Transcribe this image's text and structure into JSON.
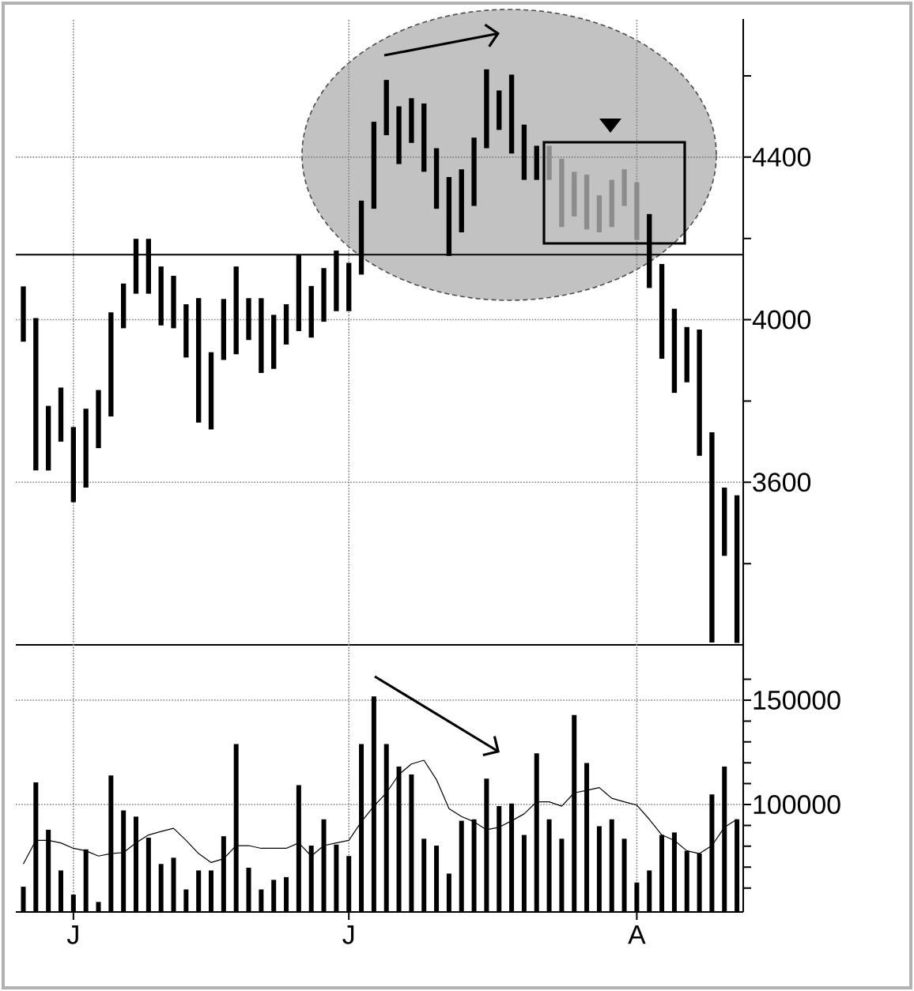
{
  "chart_data": [
    {
      "type": "bar",
      "grid": true,
      "tick_labels": "y",
      "categories": [
        null,
        null,
        null,
        null,
        null,
        null,
        null,
        null,
        null,
        null,
        null,
        null,
        null,
        null,
        null,
        null,
        null,
        null,
        null,
        null,
        null,
        null,
        null,
        null,
        null,
        null,
        null,
        null,
        null,
        null,
        null,
        null,
        null,
        null,
        null,
        null,
        null,
        null,
        null,
        null,
        null,
        null,
        null,
        null,
        null,
        null,
        null,
        null,
        null,
        null,
        null,
        null,
        null,
        null,
        null,
        null,
        null,
        null
      ],
      "base": [
        3946,
        3629,
        3629,
        3700,
        3551,
        3587,
        3684,
        3762,
        3979,
        4064,
        4064,
        3986,
        3979,
        3907,
        3747,
        3730,
        3901,
        3915,
        3950,
        3869,
        3879,
        3939,
        3972,
        3956,
        3995,
        4021,
        4021,
        4111,
        4273,
        4454,
        4383,
        4435,
        4364,
        4273,
        4157,
        4215,
        4280,
        4422,
        4467,
        4409,
        4344,
        4344,
        4344,
        4228,
        4254,
        4222,
        4215,
        4228,
        4280,
        4196,
        4078,
        3904,
        3820,
        3846,
        3665,
        3206,
        3419,
        3205
      ],
      "values": [
        136,
        375,
        159,
        133,
        185,
        194,
        143,
        256,
        110,
        135,
        135,
        145,
        129,
        131,
        306,
        190,
        150,
        216,
        103,
        184,
        133,
        99,
        187,
        127,
        132,
        149,
        119,
        182,
        214,
        136,
        142,
        110,
        168,
        149,
        194,
        155,
        168,
        194,
        97,
        194,
        136,
        84,
        84,
        168,
        110,
        135,
        91,
        116,
        90,
        142,
        182,
        233,
        207,
        136,
        311,
        517,
        168,
        363
      ],
      "colors": [
        "#000000",
        "#000000",
        "#000000",
        "#000000",
        "#000000",
        "#000000",
        "#000000",
        "#000000",
        "#000000",
        "#000000",
        "#000000",
        "#000000",
        "#000000",
        "#000000",
        "#000000",
        "#000000",
        "#000000",
        "#000000",
        "#000000",
        "#000000",
        "#000000",
        "#000000",
        "#000000",
        "#000000",
        "#000000",
        "#000000",
        "#000000",
        "#000000",
        "#000000",
        "#000000",
        "#000000",
        "#000000",
        "#000000",
        "#000000",
        "#000000",
        "#000000",
        "#000000",
        "#000000",
        "#000000",
        "#000000",
        "#000000",
        "#000000",
        "#8c8c8c",
        "#8c8c8c",
        "#8c8c8c",
        "#8c8c8c",
        "#8c8c8c",
        "#8c8c8c",
        "#8c8c8c",
        "#8c8c8c",
        "#000000",
        "#000000",
        "#000000",
        "#000000",
        "#000000",
        "#000000",
        "#000000",
        "#000000"
      ],
      "ylim": [
        3200,
        4740
      ],
      "yticks": [
        {
          "value": 3400,
          "label": null
        },
        3600,
        {
          "value": 3800,
          "label": null
        },
        4000,
        {
          "value": 4200,
          "label": null
        },
        4400,
        {
          "value": 4600,
          "label": null
        }
      ],
      "ref_lines": [
        {
          "axis": "y",
          "value": 4160,
          "color": "#000000"
        }
      ]
    },
    {
      "type": "bar",
      "grid": true,
      "categories": [
        null,
        null,
        null,
        null,
        "J",
        null,
        null,
        null,
        null,
        null,
        null,
        null,
        null,
        null,
        null,
        null,
        null,
        null,
        null,
        null,
        null,
        null,
        null,
        null,
        null,
        null,
        "J",
        null,
        null,
        null,
        null,
        null,
        null,
        null,
        null,
        null,
        null,
        null,
        null,
        null,
        null,
        null,
        null,
        null,
        null,
        null,
        null,
        null,
        null,
        "A",
        null,
        null,
        null,
        null,
        null,
        null,
        null,
        null
      ],
      "series": [
        {
          "color": "#000000",
          "values": [
            60600,
            110600,
            87900,
            68400,
            56800,
            78500,
            53300,
            113900,
            97200,
            94200,
            84100,
            71500,
            74500,
            59300,
            68400,
            68400,
            84800,
            129000,
            69700,
            59300,
            63900,
            65200,
            109300,
            80300,
            92900,
            80800,
            75300,
            129000,
            151800,
            129000,
            118200,
            114400,
            83600,
            80300,
            66900,
            92200,
            92900,
            112400,
            99200,
            100500,
            85400,
            124500,
            92900,
            83600,
            142900,
            119900,
            89600,
            92900,
            83600,
            62600,
            68400,
            85400,
            86600,
            77800,
            76500,
            104800,
            118200,
            92900
          ]
        },
        {
          "type": "line",
          "color": "#000000",
          "values": [
            71500,
            82800,
            82800,
            81600,
            79000,
            77800,
            75300,
            76500,
            77000,
            81600,
            85400,
            87100,
            88600,
            82800,
            76500,
            72200,
            74000,
            80300,
            80300,
            79000,
            79000,
            79000,
            81600,
            75300,
            80300,
            81600,
            82800,
            91700,
            99200,
            105600,
            114400,
            119400,
            121200,
            111900,
            98000,
            94200,
            91700,
            87900,
            89100,
            92200,
            95500,
            101300,
            101300,
            99200,
            105600,
            106800,
            108100,
            103000,
            101300,
            99700,
            92900,
            85400,
            82800,
            77800,
            76500,
            80300,
            89100,
            92900
          ]
        }
      ],
      "ylim": [
        48500,
        176500
      ],
      "yticks": [
        {
          "value": 60000,
          "label": null
        },
        {
          "value": 70000,
          "label": null
        },
        {
          "value": 80000,
          "label": null
        },
        {
          "value": 90000,
          "label": null
        },
        100000,
        {
          "value": 110000,
          "label": null
        },
        {
          "value": 120000,
          "label": null
        },
        {
          "value": 130000,
          "label": null
        },
        {
          "value": 140000,
          "label": null
        },
        150000,
        {
          "value": 160000,
          "label": null
        }
      ]
    }
  ]
}
